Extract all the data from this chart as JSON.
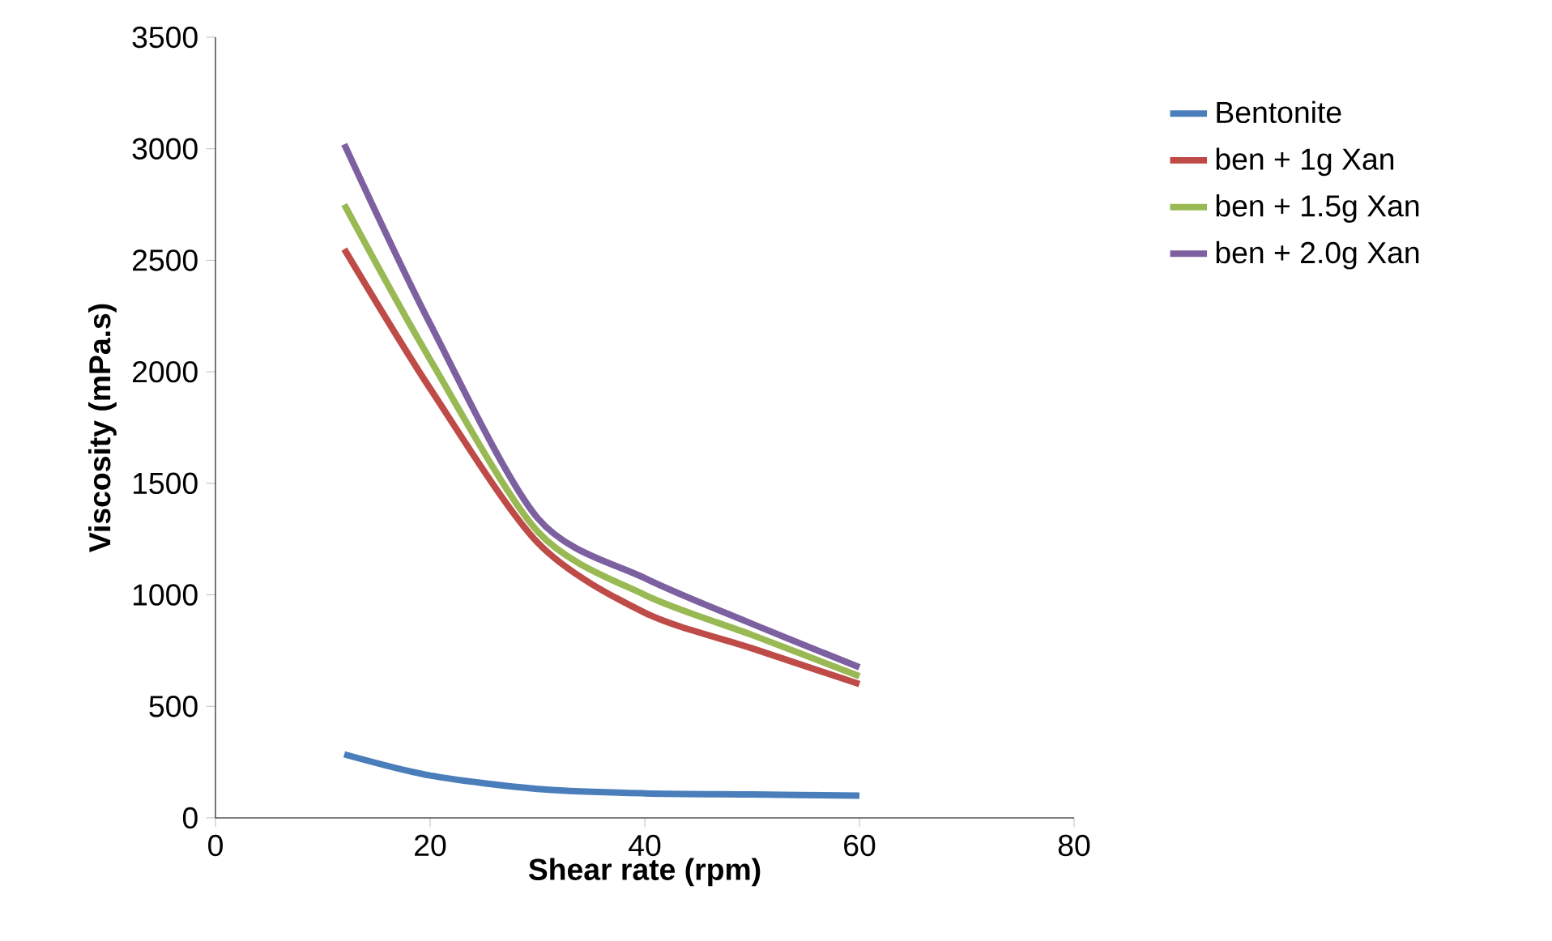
{
  "chart_data": {
    "type": "line",
    "xlabel": "Shear rate (rpm)",
    "ylabel": "Viscosity (mPa.s)",
    "x": [
      12,
      20,
      30,
      40,
      50,
      60
    ],
    "series": [
      {
        "name": "Bentonite",
        "color": "#4a7ebb",
        "values": [
          285,
          190,
          130,
          110,
          105,
          100
        ]
      },
      {
        "name": "ben + 1g Xan",
        "color": "#be4b48",
        "values": [
          2550,
          1925,
          1235,
          920,
          760,
          600
        ]
      },
      {
        "name": "ben + 1.5g Xan",
        "color": "#98b954",
        "values": [
          2750,
          2055,
          1285,
          1000,
          820,
          635
        ]
      },
      {
        "name": "ben + 2.0g Xan",
        "color": "#7d60a0",
        "values": [
          3020,
          2215,
          1345,
          1075,
          870,
          675
        ]
      }
    ],
    "xlim": [
      0,
      80
    ],
    "ylim": [
      0,
      3500
    ],
    "xticks": [
      0,
      20,
      40,
      60,
      80
    ],
    "yticks": [
      0,
      500,
      1000,
      1500,
      2000,
      2500,
      3000,
      3500
    ],
    "legend": "right",
    "marker": "none",
    "line_style": "solid",
    "grid": false
  }
}
